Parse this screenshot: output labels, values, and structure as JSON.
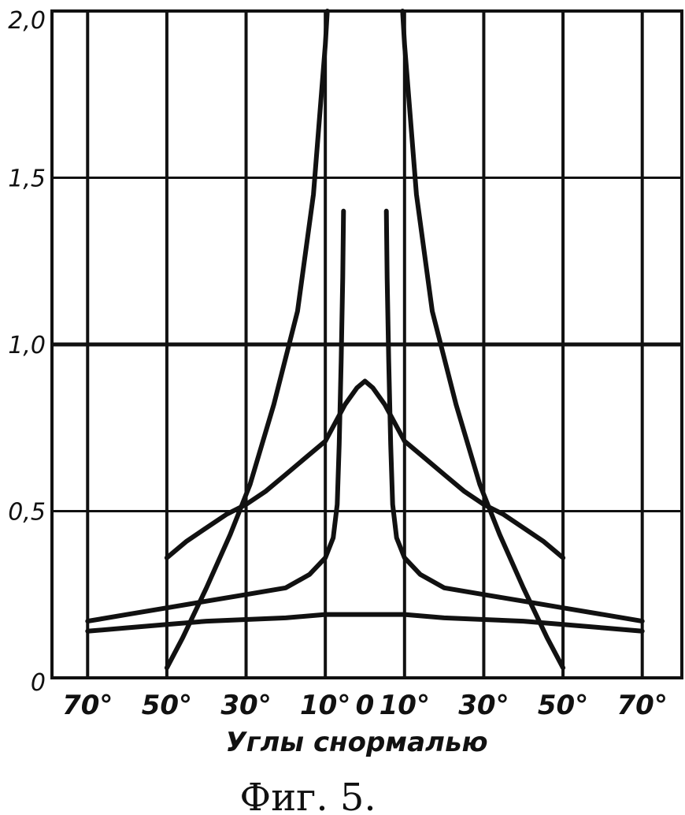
{
  "chart_data": {
    "type": "line",
    "xlabel": "Углы снормалью",
    "caption": "Фиг. 5.",
    "x_ticks": [
      {
        "value": -70,
        "label": "70°"
      },
      {
        "value": -50,
        "label": "50°"
      },
      {
        "value": -30,
        "label": "30°"
      },
      {
        "value": -10,
        "label": "10°"
      },
      {
        "value": 0,
        "label": "0"
      },
      {
        "value": 10,
        "label": "10°"
      },
      {
        "value": 30,
        "label": "30°"
      },
      {
        "value": 50,
        "label": "50°"
      },
      {
        "value": 70,
        "label": "70°"
      }
    ],
    "y_ticks": [
      {
        "value": 0,
        "label": "0"
      },
      {
        "value": 0.5,
        "label": "0,5"
      },
      {
        "value": 1.0,
        "label": "1,0"
      },
      {
        "value": 1.5,
        "label": "1,5"
      },
      {
        "value": 2.0,
        "label": "2,0"
      }
    ],
    "xlim": [
      -79,
      80
    ],
    "ylim": [
      0,
      2.0
    ],
    "grid": true,
    "series": [
      {
        "x": [
          -70,
          -60,
          -50,
          -40,
          -30,
          -20,
          -10,
          0,
          10,
          20,
          30,
          40,
          50,
          60,
          70
        ],
        "y": [
          0.14,
          0.15,
          0.16,
          0.17,
          0.175,
          0.18,
          0.19,
          0.19,
          0.19,
          0.18,
          0.175,
          0.17,
          0.16,
          0.15,
          0.14
        ]
      },
      {
        "x": [
          -50,
          -46,
          -40,
          -34,
          -29,
          -23,
          -17,
          -13,
          -10,
          -9.5
        ],
        "y": [
          0.03,
          0.12,
          0.27,
          0.43,
          0.58,
          0.82,
          1.1,
          1.45,
          1.9,
          2.0
        ]
      },
      {
        "x": [
          9.5,
          10,
          13,
          17,
          23,
          29,
          34,
          40,
          46,
          50
        ],
        "y": [
          2.0,
          1.9,
          1.45,
          1.1,
          0.82,
          0.58,
          0.43,
          0.27,
          0.12,
          0.03
        ]
      },
      {
        "x": [
          -50,
          -45,
          -40,
          -35,
          -30,
          -25,
          -20,
          -15,
          -10,
          -5,
          -2,
          0,
          2,
          5,
          10,
          15,
          20,
          25,
          30,
          35,
          40,
          45,
          50
        ],
        "y": [
          0.36,
          0.41,
          0.45,
          0.49,
          0.52,
          0.56,
          0.61,
          0.66,
          0.71,
          0.82,
          0.87,
          0.89,
          0.87,
          0.82,
          0.71,
          0.66,
          0.61,
          0.56,
          0.52,
          0.49,
          0.45,
          0.41,
          0.36
        ]
      },
      {
        "x": [
          -70,
          -60,
          -50,
          -40,
          -30,
          -20,
          -14,
          -10,
          -8,
          -7,
          -6.5,
          -6,
          -5.6,
          -5.4
        ],
        "y": [
          0.17,
          0.19,
          0.21,
          0.23,
          0.25,
          0.27,
          0.31,
          0.36,
          0.42,
          0.52,
          0.7,
          0.95,
          1.2,
          1.4
        ]
      },
      {
        "x": [
          5.4,
          5.6,
          6,
          6.5,
          7,
          8,
          10,
          14,
          20,
          30,
          40,
          50,
          60,
          70
        ],
        "y": [
          1.4,
          1.2,
          0.95,
          0.7,
          0.52,
          0.42,
          0.36,
          0.31,
          0.27,
          0.25,
          0.23,
          0.21,
          0.19,
          0.17
        ]
      }
    ]
  }
}
